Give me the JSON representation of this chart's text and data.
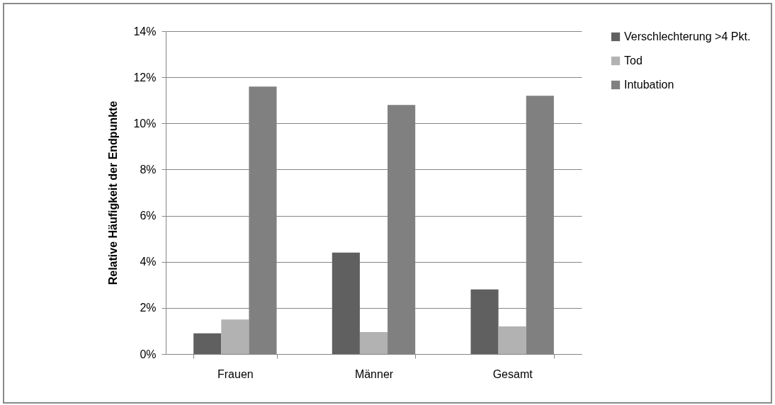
{
  "chart_data": {
    "type": "bar",
    "ylabel": "Relative Häufigkeit der Endpunkte",
    "categories": [
      "Frauen",
      "Männer",
      "Gesamt"
    ],
    "series": [
      {
        "name": "Verschlechterung >4 Pkt.",
        "color": "#606060",
        "values": [
          0.9,
          4.4,
          2.8
        ]
      },
      {
        "name": "Tod",
        "color": "#b2b2b2",
        "values": [
          1.5,
          0.95,
          1.2
        ]
      },
      {
        "name": "Intubation",
        "color": "#808080",
        "values": [
          11.6,
          10.8,
          11.2
        ]
      }
    ],
    "ylim": [
      0,
      14
    ],
    "yticks": [
      {
        "value": 0,
        "label": "0%"
      },
      {
        "value": 2,
        "label": "2%"
      },
      {
        "value": 4,
        "label": "4%"
      },
      {
        "value": 6,
        "label": "6%"
      },
      {
        "value": 8,
        "label": "8%"
      },
      {
        "value": 10,
        "label": "10%"
      },
      {
        "value": 12,
        "label": "12%"
      },
      {
        "value": 14,
        "label": "14%"
      }
    ],
    "grid": "y",
    "legend": "right"
  }
}
